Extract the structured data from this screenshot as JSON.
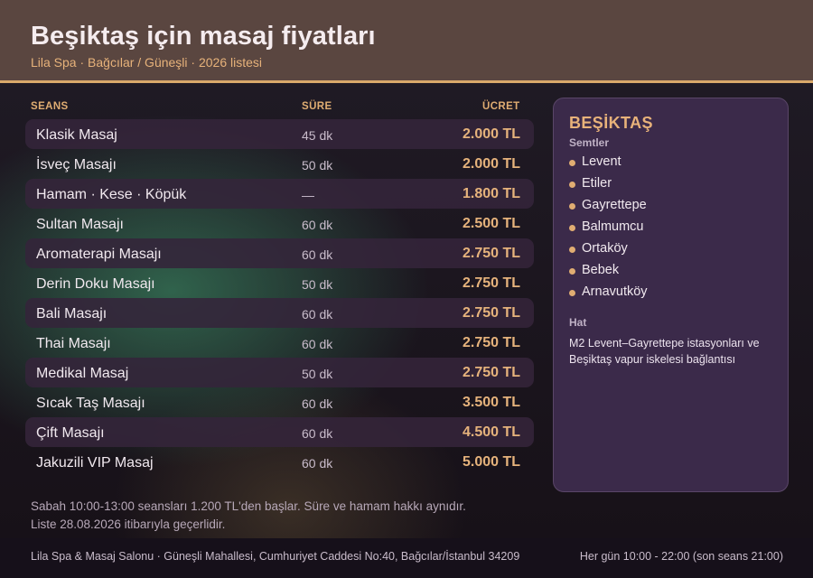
{
  "header": {
    "title": "Beşiktaş için masaj fiyatları",
    "subtitle": "Lila Spa · Bağcılar / Güneşli · 2026 listesi"
  },
  "table": {
    "columns": {
      "session": "SEANS",
      "duration": "SÜRE",
      "price": "ÜCRET"
    },
    "rows": [
      {
        "name": "Klasik Masaj",
        "duration": "45 dk",
        "price": "2.000 TL"
      },
      {
        "name": "İsveç Masajı",
        "duration": "50 dk",
        "price": "2.000 TL"
      },
      {
        "name": "Hamam · Kese · Köpük",
        "duration": "—",
        "price": "1.800 TL"
      },
      {
        "name": "Sultan Masajı",
        "duration": "60 dk",
        "price": "2.500 TL"
      },
      {
        "name": "Aromaterapi Masajı",
        "duration": "60 dk",
        "price": "2.750 TL"
      },
      {
        "name": "Derin Doku Masajı",
        "duration": "50 dk",
        "price": "2.750 TL"
      },
      {
        "name": "Bali Masajı",
        "duration": "60 dk",
        "price": "2.750 TL"
      },
      {
        "name": "Thai Masajı",
        "duration": "60 dk",
        "price": "2.750 TL"
      },
      {
        "name": "Medikal Masaj",
        "duration": "50 dk",
        "price": "2.750 TL"
      },
      {
        "name": "Sıcak Taş Masajı",
        "duration": "60 dk",
        "price": "3.500 TL"
      },
      {
        "name": "Çift Masajı",
        "duration": "60 dk",
        "price": "4.500 TL"
      },
      {
        "name": "Jakuzili VIP Masaj",
        "duration": "60 dk",
        "price": "5.000 TL"
      }
    ]
  },
  "notes": {
    "line1": "Sabah 10:00-13:00 seansları 1.200 TL'den başlar. Süre ve hamam hakkı aynıdır.",
    "line2": "Liste 28.08.2026 itibarıyla geçerlidir."
  },
  "panel": {
    "title": "BEŞİKTAŞ",
    "districts_label": "Semtler",
    "districts": [
      "Levent",
      "Etiler",
      "Gayrettepe",
      "Balmumcu",
      "Ortaköy",
      "Bebek",
      "Arnavutköy"
    ],
    "line_label": "Hat",
    "line_text": "M2 Levent–Gayrettepe istasyonları ve Beşiktaş vapur iskelesi bağlantısı"
  },
  "footer": {
    "address": "Lila Spa & Masaj Salonu · Güneşli Mahallesi, Cumhuriyet Caddesi No:40, Bağcılar/İstanbul 34209",
    "hours": "Her gün 10:00 - 22:00 (son seans 21:00)"
  },
  "colors": {
    "accent": "#e6b37c",
    "header_bg": "#5a4640",
    "panel_bg": "#3b2a4a"
  }
}
